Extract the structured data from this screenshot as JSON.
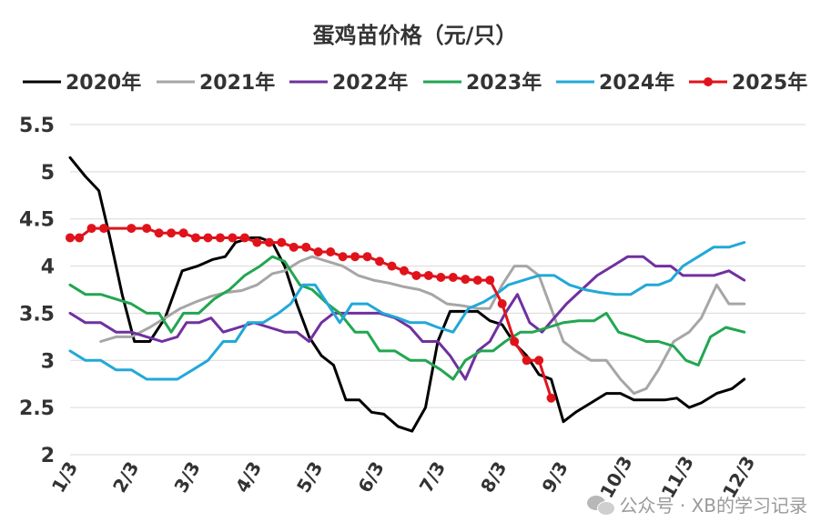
{
  "chart_data": {
    "type": "line",
    "title": "蛋鸡苗价格（元/只）",
    "xlabel": "",
    "ylabel": "",
    "ylim": [
      2,
      5.5
    ],
    "yticks": [
      "2",
      "2.5",
      "3",
      "3.5",
      "4",
      "4.5",
      "5",
      "5.5"
    ],
    "x_label_unit": "month",
    "x_domain": [
      1,
      13
    ],
    "xticks": [
      {
        "label": "1/3",
        "x": 1
      },
      {
        "label": "2/3",
        "x": 2
      },
      {
        "label": "3/3",
        "x": 3
      },
      {
        "label": "4/3",
        "x": 4
      },
      {
        "label": "5/3",
        "x": 5
      },
      {
        "label": "6/3",
        "x": 6
      },
      {
        "label": "7/3",
        "x": 7
      },
      {
        "label": "8/3",
        "x": 8
      },
      {
        "label": "9/3",
        "x": 9
      },
      {
        "label": "10/3",
        "x": 10
      },
      {
        "label": "11/3",
        "x": 11
      },
      {
        "label": "12/3",
        "x": 12
      }
    ],
    "grid": true,
    "legend_position": "top",
    "series": [
      {
        "name": "2020年",
        "color": "#000000",
        "markers": false,
        "points": [
          [
            1.0,
            5.15
          ],
          [
            1.25,
            4.95
          ],
          [
            1.47,
            4.8
          ],
          [
            1.65,
            4.3
          ],
          [
            1.85,
            3.7
          ],
          [
            2.05,
            3.2
          ],
          [
            2.3,
            3.2
          ],
          [
            2.55,
            3.45
          ],
          [
            2.83,
            3.95
          ],
          [
            3.08,
            4.0
          ],
          [
            3.33,
            4.07
          ],
          [
            3.53,
            4.1
          ],
          [
            3.7,
            4.25
          ],
          [
            3.95,
            4.3
          ],
          [
            4.1,
            4.3
          ],
          [
            4.3,
            4.25
          ],
          [
            4.5,
            4.0
          ],
          [
            4.7,
            3.6
          ],
          [
            4.9,
            3.25
          ],
          [
            5.1,
            3.05
          ],
          [
            5.3,
            2.95
          ],
          [
            5.5,
            2.58
          ],
          [
            5.72,
            2.58
          ],
          [
            5.92,
            2.45
          ],
          [
            6.12,
            2.43
          ],
          [
            6.35,
            2.3
          ],
          [
            6.58,
            2.25
          ],
          [
            6.8,
            2.5
          ],
          [
            7.0,
            3.2
          ],
          [
            7.2,
            3.52
          ],
          [
            7.45,
            3.52
          ],
          [
            7.65,
            3.52
          ],
          [
            7.85,
            3.42
          ],
          [
            8.05,
            3.38
          ],
          [
            8.25,
            3.18
          ],
          [
            8.45,
            3.05
          ],
          [
            8.65,
            2.85
          ],
          [
            8.85,
            2.8
          ],
          [
            9.05,
            2.35
          ],
          [
            9.25,
            2.45
          ],
          [
            9.5,
            2.55
          ],
          [
            9.75,
            2.65
          ],
          [
            9.98,
            2.65
          ],
          [
            10.2,
            2.58
          ],
          [
            10.45,
            2.58
          ],
          [
            10.7,
            2.58
          ],
          [
            10.9,
            2.6
          ],
          [
            11.1,
            2.5
          ],
          [
            11.3,
            2.55
          ],
          [
            11.55,
            2.65
          ],
          [
            11.8,
            2.7
          ],
          [
            12.0,
            2.8
          ]
        ]
      },
      {
        "name": "2021年",
        "color": "#a6a6a6",
        "markers": false,
        "points": [
          [
            1.5,
            3.2
          ],
          [
            1.75,
            3.25
          ],
          [
            2.0,
            3.25
          ],
          [
            2.3,
            3.35
          ],
          [
            2.55,
            3.45
          ],
          [
            2.8,
            3.55
          ],
          [
            3.05,
            3.62
          ],
          [
            3.3,
            3.68
          ],
          [
            3.55,
            3.72
          ],
          [
            3.8,
            3.74
          ],
          [
            4.05,
            3.8
          ],
          [
            4.3,
            3.92
          ],
          [
            4.5,
            3.95
          ],
          [
            4.75,
            4.05
          ],
          [
            4.95,
            4.1
          ],
          [
            5.2,
            4.05
          ],
          [
            5.45,
            4.0
          ],
          [
            5.7,
            3.9
          ],
          [
            5.95,
            3.85
          ],
          [
            6.2,
            3.82
          ],
          [
            6.45,
            3.78
          ],
          [
            6.7,
            3.75
          ],
          [
            6.9,
            3.7
          ],
          [
            7.15,
            3.6
          ],
          [
            7.4,
            3.58
          ],
          [
            7.65,
            3.55
          ],
          [
            7.85,
            3.55
          ],
          [
            8.05,
            3.8
          ],
          [
            8.25,
            4.0
          ],
          [
            8.45,
            4.0
          ],
          [
            8.65,
            3.9
          ],
          [
            8.85,
            3.55
          ],
          [
            9.05,
            3.2
          ],
          [
            9.25,
            3.1
          ],
          [
            9.5,
            3.0
          ],
          [
            9.75,
            3.0
          ],
          [
            9.98,
            2.8
          ],
          [
            10.2,
            2.65
          ],
          [
            10.4,
            2.7
          ],
          [
            10.6,
            2.9
          ],
          [
            10.85,
            3.2
          ],
          [
            11.1,
            3.3
          ],
          [
            11.3,
            3.45
          ],
          [
            11.55,
            3.8
          ],
          [
            11.75,
            3.6
          ],
          [
            12.0,
            3.6
          ]
        ]
      },
      {
        "name": "2022年",
        "color": "#7030a0",
        "markers": false,
        "points": [
          [
            1.0,
            3.5
          ],
          [
            1.25,
            3.4
          ],
          [
            1.5,
            3.4
          ],
          [
            1.75,
            3.3
          ],
          [
            2.0,
            3.3
          ],
          [
            2.25,
            3.25
          ],
          [
            2.5,
            3.2
          ],
          [
            2.75,
            3.25
          ],
          [
            2.9,
            3.4
          ],
          [
            3.1,
            3.4
          ],
          [
            3.3,
            3.45
          ],
          [
            3.5,
            3.3
          ],
          [
            3.75,
            3.35
          ],
          [
            4.0,
            3.4
          ],
          [
            4.25,
            3.35
          ],
          [
            4.5,
            3.3
          ],
          [
            4.7,
            3.3
          ],
          [
            4.9,
            3.2
          ],
          [
            5.1,
            3.4
          ],
          [
            5.3,
            3.5
          ],
          [
            5.55,
            3.5
          ],
          [
            5.8,
            3.5
          ],
          [
            6.05,
            3.5
          ],
          [
            6.3,
            3.45
          ],
          [
            6.55,
            3.35
          ],
          [
            6.75,
            3.2
          ],
          [
            7.0,
            3.2
          ],
          [
            7.2,
            3.05
          ],
          [
            7.45,
            2.8
          ],
          [
            7.65,
            3.1
          ],
          [
            7.85,
            3.2
          ],
          [
            8.1,
            3.5
          ],
          [
            8.3,
            3.7
          ],
          [
            8.5,
            3.4
          ],
          [
            8.7,
            3.3
          ],
          [
            8.9,
            3.45
          ],
          [
            9.1,
            3.6
          ],
          [
            9.35,
            3.75
          ],
          [
            9.6,
            3.9
          ],
          [
            9.85,
            4.0
          ],
          [
            10.1,
            4.1
          ],
          [
            10.35,
            4.1
          ],
          [
            10.55,
            4.0
          ],
          [
            10.8,
            4.0
          ],
          [
            11.0,
            3.9
          ],
          [
            11.25,
            3.9
          ],
          [
            11.5,
            3.9
          ],
          [
            11.75,
            3.95
          ],
          [
            12.0,
            3.85
          ]
        ]
      },
      {
        "name": "2023年",
        "color": "#22a650",
        "markers": false,
        "points": [
          [
            1.0,
            3.8
          ],
          [
            1.25,
            3.7
          ],
          [
            1.5,
            3.7
          ],
          [
            1.75,
            3.65
          ],
          [
            2.0,
            3.6
          ],
          [
            2.25,
            3.5
          ],
          [
            2.45,
            3.5
          ],
          [
            2.65,
            3.3
          ],
          [
            2.85,
            3.5
          ],
          [
            3.1,
            3.5
          ],
          [
            3.35,
            3.65
          ],
          [
            3.6,
            3.75
          ],
          [
            3.85,
            3.9
          ],
          [
            4.1,
            4.0
          ],
          [
            4.3,
            4.1
          ],
          [
            4.5,
            4.05
          ],
          [
            4.75,
            3.8
          ],
          [
            4.95,
            3.75
          ],
          [
            5.2,
            3.6
          ],
          [
            5.4,
            3.5
          ],
          [
            5.65,
            3.3
          ],
          [
            5.85,
            3.3
          ],
          [
            6.05,
            3.1
          ],
          [
            6.3,
            3.1
          ],
          [
            6.55,
            3.0
          ],
          [
            6.8,
            3.0
          ],
          [
            7.05,
            2.9
          ],
          [
            7.25,
            2.8
          ],
          [
            7.45,
            3.0
          ],
          [
            7.7,
            3.1
          ],
          [
            7.9,
            3.1
          ],
          [
            8.1,
            3.2
          ],
          [
            8.35,
            3.3
          ],
          [
            8.55,
            3.3
          ],
          [
            8.8,
            3.35
          ],
          [
            9.05,
            3.4
          ],
          [
            9.3,
            3.42
          ],
          [
            9.55,
            3.42
          ],
          [
            9.75,
            3.5
          ],
          [
            9.95,
            3.3
          ],
          [
            10.2,
            3.25
          ],
          [
            10.4,
            3.2
          ],
          [
            10.6,
            3.2
          ],
          [
            10.85,
            3.15
          ],
          [
            11.05,
            3.0
          ],
          [
            11.25,
            2.95
          ],
          [
            11.45,
            3.25
          ],
          [
            11.7,
            3.35
          ],
          [
            12.0,
            3.3
          ]
        ]
      },
      {
        "name": "2024年",
        "color": "#22a8d8",
        "markers": false,
        "points": [
          [
            1.0,
            3.1
          ],
          [
            1.25,
            3.0
          ],
          [
            1.5,
            3.0
          ],
          [
            1.75,
            2.9
          ],
          [
            2.0,
            2.9
          ],
          [
            2.25,
            2.8
          ],
          [
            2.5,
            2.8
          ],
          [
            2.75,
            2.8
          ],
          [
            3.0,
            2.9
          ],
          [
            3.25,
            3.0
          ],
          [
            3.5,
            3.2
          ],
          [
            3.7,
            3.2
          ],
          [
            3.9,
            3.4
          ],
          [
            4.15,
            3.4
          ],
          [
            4.4,
            3.5
          ],
          [
            4.6,
            3.6
          ],
          [
            4.8,
            3.8
          ],
          [
            5.0,
            3.8
          ],
          [
            5.2,
            3.6
          ],
          [
            5.4,
            3.4
          ],
          [
            5.6,
            3.6
          ],
          [
            5.85,
            3.6
          ],
          [
            6.1,
            3.5
          ],
          [
            6.35,
            3.45
          ],
          [
            6.55,
            3.4
          ],
          [
            6.8,
            3.4
          ],
          [
            7.0,
            3.35
          ],
          [
            7.25,
            3.3
          ],
          [
            7.5,
            3.55
          ],
          [
            7.75,
            3.62
          ],
          [
            7.95,
            3.7
          ],
          [
            8.15,
            3.8
          ],
          [
            8.4,
            3.85
          ],
          [
            8.65,
            3.9
          ],
          [
            8.9,
            3.9
          ],
          [
            9.15,
            3.8
          ],
          [
            9.4,
            3.75
          ],
          [
            9.65,
            3.72
          ],
          [
            9.9,
            3.7
          ],
          [
            10.15,
            3.7
          ],
          [
            10.4,
            3.8
          ],
          [
            10.6,
            3.8
          ],
          [
            10.8,
            3.85
          ],
          [
            11.0,
            4.0
          ],
          [
            11.25,
            4.1
          ],
          [
            11.5,
            4.2
          ],
          [
            11.75,
            4.2
          ],
          [
            12.0,
            4.25
          ]
        ]
      },
      {
        "name": "2025年",
        "color": "#e0131b",
        "markers": true,
        "points": [
          [
            1.0,
            4.3
          ],
          [
            1.15,
            4.3
          ],
          [
            1.35,
            4.4
          ],
          [
            1.55,
            4.4
          ],
          [
            2.0,
            4.4
          ],
          [
            2.25,
            4.4
          ],
          [
            2.45,
            4.35
          ],
          [
            2.65,
            4.35
          ],
          [
            2.85,
            4.35
          ],
          [
            3.05,
            4.3
          ],
          [
            3.25,
            4.3
          ],
          [
            3.45,
            4.3
          ],
          [
            3.65,
            4.3
          ],
          [
            3.85,
            4.3
          ],
          [
            4.05,
            4.25
          ],
          [
            4.25,
            4.25
          ],
          [
            4.45,
            4.25
          ],
          [
            4.65,
            4.2
          ],
          [
            4.85,
            4.2
          ],
          [
            5.05,
            4.15
          ],
          [
            5.25,
            4.15
          ],
          [
            5.45,
            4.1
          ],
          [
            5.65,
            4.1
          ],
          [
            5.85,
            4.1
          ],
          [
            6.05,
            4.05
          ],
          [
            6.25,
            4.0
          ],
          [
            6.45,
            3.95
          ],
          [
            6.65,
            3.9
          ],
          [
            6.85,
            3.9
          ],
          [
            7.05,
            3.88
          ],
          [
            7.25,
            3.88
          ],
          [
            7.45,
            3.86
          ],
          [
            7.65,
            3.85
          ],
          [
            7.85,
            3.85
          ],
          [
            8.05,
            3.6
          ],
          [
            8.25,
            3.2
          ],
          [
            8.45,
            3.0
          ],
          [
            8.65,
            3.0
          ],
          [
            8.85,
            2.6
          ]
        ]
      }
    ]
  },
  "watermark": {
    "text": "公众号 · XB的学习记录",
    "icon": "wechat-icon"
  }
}
